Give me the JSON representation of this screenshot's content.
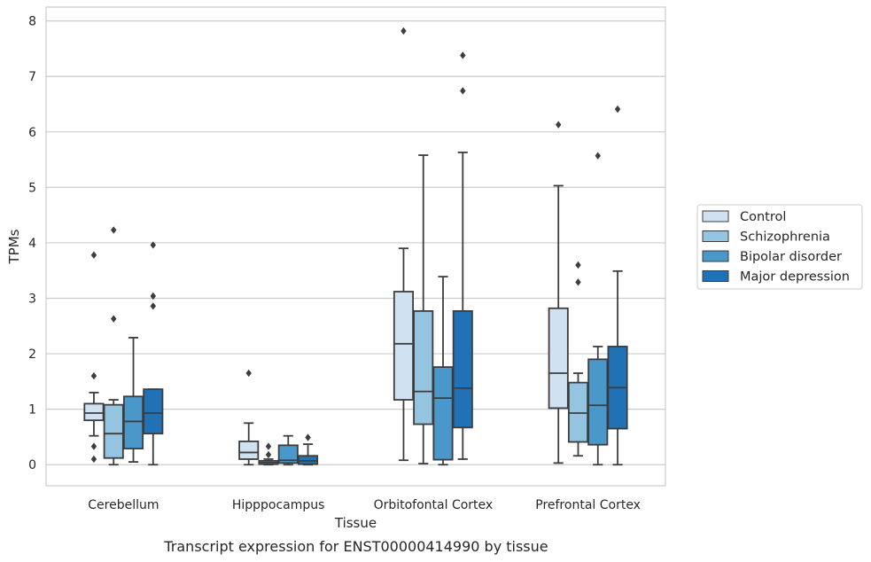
{
  "caption": "Transcript expression for ENST00000414990 by tissue",
  "chart_data": {
    "type": "box",
    "xlabel": "Tissue",
    "ylabel": "TPMs",
    "ylim": [
      -0.38,
      8.25
    ],
    "yticks": [
      0,
      1,
      2,
      3,
      4,
      5,
      6,
      7,
      8
    ],
    "grid": "horizontal",
    "legend_position": "right",
    "categories": [
      "Cerebellum",
      "Hipppocampus",
      "Orbitofontal Cortex",
      "Prefrontal Cortex"
    ],
    "series": [
      {
        "name": "Control",
        "color": "#d0e1f2",
        "boxes": [
          {
            "whislo": 0.52,
            "q1": 0.8,
            "med": 0.93,
            "q3": 1.1,
            "whishi": 1.3,
            "fliers": [
              0.1,
              0.33,
              1.6,
              3.78
            ]
          },
          {
            "whislo": 0.0,
            "q1": 0.1,
            "med": 0.22,
            "q3": 0.42,
            "whishi": 0.75,
            "fliers": [
              1.65
            ]
          },
          {
            "whislo": 0.08,
            "q1": 1.17,
            "med": 2.18,
            "q3": 3.12,
            "whishi": 3.9,
            "fliers": [
              7.82
            ]
          },
          {
            "whislo": 0.03,
            "q1": 1.02,
            "med": 1.65,
            "q3": 2.82,
            "whishi": 5.03,
            "fliers": [
              6.13
            ]
          }
        ]
      },
      {
        "name": "Schizophrenia",
        "color": "#94c4df",
        "boxes": [
          {
            "whislo": 0.0,
            "q1": 0.12,
            "med": 0.56,
            "q3": 1.08,
            "whishi": 1.17,
            "fliers": [
              2.63,
              4.23
            ]
          },
          {
            "whislo": 0.0,
            "q1": 0.01,
            "med": 0.04,
            "q3": 0.07,
            "whishi": 0.1,
            "fliers": [
              0.18,
              0.33
            ]
          },
          {
            "whislo": 0.02,
            "q1": 0.73,
            "med": 1.32,
            "q3": 2.77,
            "whishi": 5.58,
            "fliers": []
          },
          {
            "whislo": 0.16,
            "q1": 0.41,
            "med": 0.93,
            "q3": 1.48,
            "whishi": 1.65,
            "fliers": [
              3.29,
              3.6
            ]
          }
        ]
      },
      {
        "name": "Bipolar disorder",
        "color": "#4a98c9",
        "boxes": [
          {
            "whislo": 0.05,
            "q1": 0.29,
            "med": 0.78,
            "q3": 1.23,
            "whishi": 2.29,
            "fliers": []
          },
          {
            "whislo": 0.0,
            "q1": 0.03,
            "med": 0.08,
            "q3": 0.35,
            "whishi": 0.52,
            "fliers": []
          },
          {
            "whislo": 0.0,
            "q1": 0.09,
            "med": 1.2,
            "q3": 1.76,
            "whishi": 3.39,
            "fliers": []
          },
          {
            "whislo": 0.0,
            "q1": 0.36,
            "med": 1.07,
            "q3": 1.9,
            "whishi": 2.13,
            "fliers": [
              5.57
            ]
          }
        ]
      },
      {
        "name": "Major depression",
        "color": "#2171b5",
        "boxes": [
          {
            "whislo": 0.0,
            "q1": 0.56,
            "med": 0.93,
            "q3": 1.36,
            "whishi": 1.36,
            "fliers": [
              2.86,
              3.04,
              3.96
            ]
          },
          {
            "whislo": 0.0,
            "q1": 0.01,
            "med": 0.07,
            "q3": 0.16,
            "whishi": 0.37,
            "fliers": [
              0.49
            ]
          },
          {
            "whislo": 0.1,
            "q1": 0.67,
            "med": 1.38,
            "q3": 2.77,
            "whishi": 5.63,
            "fliers": [
              6.74,
              7.38
            ]
          },
          {
            "whislo": 0.0,
            "q1": 0.65,
            "med": 1.39,
            "q3": 2.13,
            "whishi": 3.49,
            "fliers": [
              6.41
            ]
          }
        ]
      }
    ]
  }
}
